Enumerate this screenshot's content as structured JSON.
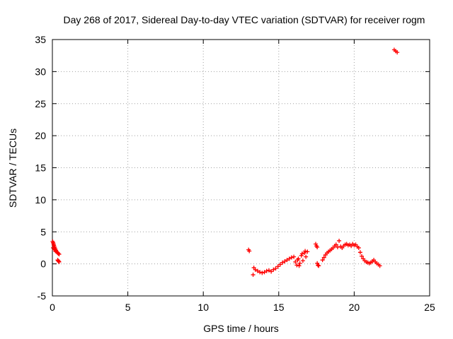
{
  "chart_data": {
    "type": "scatter",
    "title": "Day 268 of 2017, Sidereal Day-to-day VTEC variation (SDTVAR) for receiver rogm",
    "xlabel": "GPS time / hours",
    "ylabel": "SDTVAR / TECUs",
    "xlim": [
      0,
      25
    ],
    "ylim": [
      -5,
      35
    ],
    "xticks": [
      "0",
      "5",
      "10",
      "15",
      "20",
      "25"
    ],
    "yticks": [
      "-5",
      "0",
      "5",
      "10",
      "15",
      "20",
      "25",
      "30",
      "35"
    ],
    "grid": true,
    "marker": "plus",
    "color": "#ff0000",
    "series": [
      {
        "x": [
          0.02,
          0.05,
          0.08,
          0.1,
          0.13,
          0.16,
          0.2,
          0.24,
          0.28,
          0.32,
          0.36,
          0.4,
          0.45,
          0.05,
          0.12,
          0.2,
          0.35,
          0.38,
          0.42,
          0.45,
          13.0,
          13.05,
          13.3,
          13.35,
          13.45,
          13.6,
          13.75,
          13.9,
          14.05,
          14.2,
          14.35,
          14.5,
          14.65,
          14.8,
          14.95,
          15.1,
          15.25,
          15.4,
          15.55,
          15.7,
          15.85,
          16.0,
          16.1,
          16.2,
          16.3,
          16.4,
          16.5,
          16.6,
          16.7,
          16.8,
          16.9,
          16.25,
          16.35,
          16.55,
          16.75,
          17.45,
          17.5,
          17.55,
          17.6,
          17.65,
          17.55,
          17.9,
          18.0,
          18.1,
          18.2,
          18.3,
          18.4,
          18.5,
          18.6,
          18.7,
          18.8,
          18.9,
          19.0,
          19.1,
          19.2,
          19.3,
          19.4,
          19.5,
          19.6,
          19.7,
          19.8,
          19.9,
          20.0,
          20.1,
          20.2,
          20.3,
          20.4,
          20.5,
          20.6,
          20.7,
          20.8,
          20.9,
          21.0,
          21.1,
          21.2,
          21.3,
          21.4,
          21.5,
          21.6,
          21.7,
          22.65,
          22.75,
          22.85
        ],
        "y": [
          3.5,
          3.3,
          3.1,
          2.9,
          2.7,
          2.5,
          2.3,
          2.1,
          1.9,
          1.8,
          1.7,
          1.6,
          1.5,
          2.5,
          2.2,
          2.0,
          0.6,
          0.5,
          0.4,
          0.3,
          2.2,
          2.0,
          -1.7,
          -0.6,
          -0.9,
          -1.1,
          -1.3,
          -1.4,
          -1.3,
          -1.1,
          -1.0,
          -1.2,
          -0.9,
          -0.7,
          -0.4,
          -0.1,
          0.2,
          0.4,
          0.6,
          0.8,
          1.0,
          1.1,
          0.3,
          -0.2,
          0.8,
          0.1,
          1.3,
          0.5,
          1.7,
          1.1,
          1.9,
          0.6,
          -0.3,
          1.6,
          2.0,
          3.1,
          2.8,
          2.6,
          -0.2,
          -0.3,
          0.1,
          0.6,
          1.0,
          1.4,
          1.7,
          1.9,
          2.1,
          2.3,
          2.5,
          2.8,
          3.0,
          2.6,
          3.6,
          2.7,
          2.5,
          2.8,
          3.0,
          3.1,
          2.9,
          3.0,
          2.8,
          3.1,
          2.9,
          3.0,
          2.7,
          2.5,
          1.8,
          1.2,
          0.8,
          0.5,
          0.3,
          0.2,
          0.1,
          0.2,
          0.4,
          0.6,
          0.3,
          0.1,
          -0.1,
          -0.3,
          33.4,
          33.2,
          33.0
        ]
      }
    ]
  }
}
